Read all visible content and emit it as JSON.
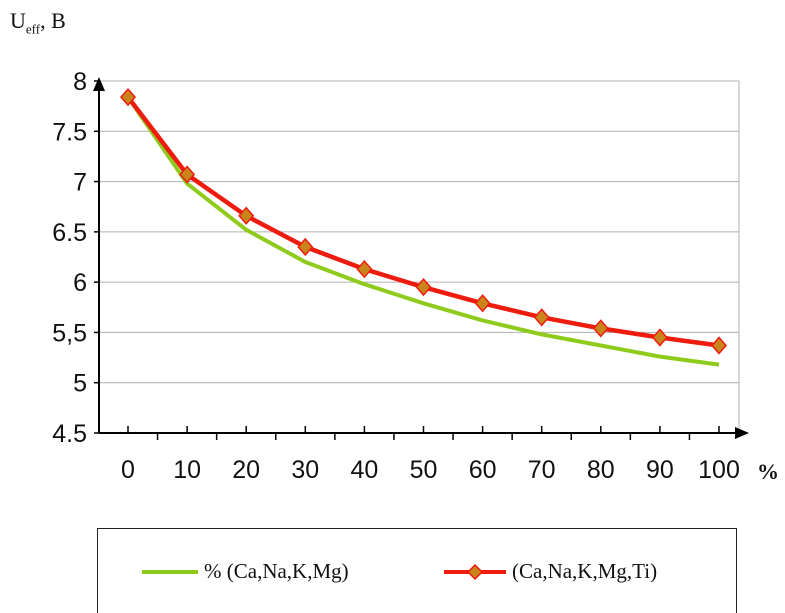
{
  "y_axis_label": {
    "main": "U",
    "sub": "eff",
    "unit": ", B"
  },
  "x_unit": "%",
  "colors": {
    "series_a": "#8fcb1d",
    "series_b": "#ee1c0e",
    "marker": "#c9851c",
    "grid": "#b0b0b0",
    "axis": "#000000"
  },
  "chart_data": {
    "type": "line",
    "x": [
      0,
      10,
      20,
      30,
      40,
      50,
      60,
      70,
      80,
      90,
      100
    ],
    "xlim": [
      0,
      100
    ],
    "ylim": [
      4.5,
      8
    ],
    "y_ticks": [
      4.5,
      5,
      5.5,
      6,
      6.5,
      7,
      7.5,
      8
    ],
    "x_tick_labels": [
      "0",
      "10",
      "20",
      "30",
      "40",
      "50",
      "60",
      "70",
      "80",
      "90",
      "100"
    ],
    "y_tick_labels": [
      "4.5",
      "5",
      "5,5",
      "6",
      "6.5",
      "7",
      "7.5",
      "8"
    ],
    "grid": true,
    "legend_position": "bottom",
    "series": [
      {
        "name": "% (Ca,Na,K,Mg)",
        "values": [
          7.84,
          6.98,
          6.52,
          6.2,
          5.98,
          5.79,
          5.62,
          5.48,
          5.37,
          5.26,
          5.18
        ]
      },
      {
        "name": "(Ca,Na,K,Mg,Ti)",
        "values": [
          7.84,
          7.07,
          6.66,
          6.35,
          6.13,
          5.95,
          5.79,
          5.65,
          5.54,
          5.45,
          5.37
        ]
      }
    ]
  }
}
